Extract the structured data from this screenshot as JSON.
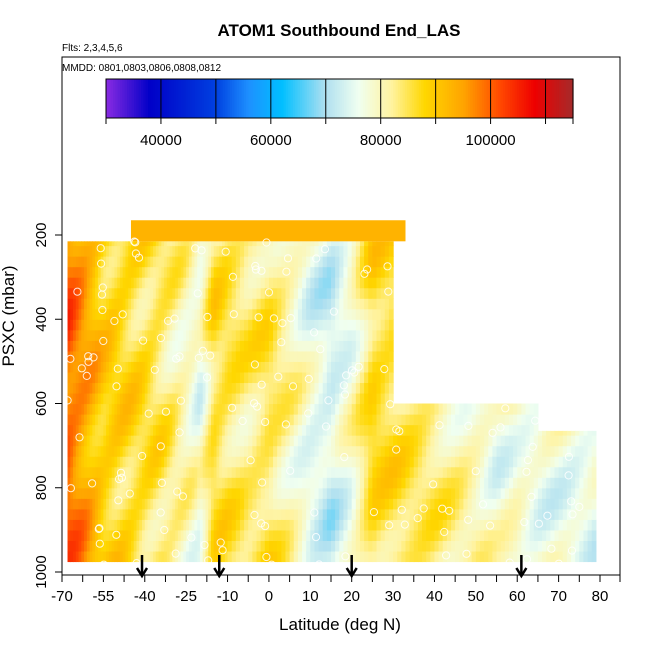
{
  "chart_data": {
    "type": "heatmap",
    "title": "ATOM1 Southbound End_LAS",
    "flights_label": "Flts: 2,3,4,5,6",
    "dates_label": "MMDD: 0801,0803,0806,0808,0812",
    "xlabel": "Latitude (deg N)",
    "ylabel": "PSXC (mbar)",
    "x_ticks": [
      "-70",
      "-55",
      "-40",
      "-25",
      "-10",
      "0",
      "10",
      "20",
      "30",
      "40",
      "50",
      "60",
      "70",
      "80"
    ],
    "y_ticks": [
      "200",
      "400",
      "600",
      "800",
      "1000"
    ],
    "y_range": [
      1000,
      0
    ],
    "y_reversed": true,
    "colorbar": {
      "min": 30000,
      "max": 115000,
      "tick_values": [
        40000,
        60000,
        80000,
        100000
      ],
      "tick_labels": [
        "40000",
        "60000",
        "80000",
        "100000"
      ],
      "boundaries": [
        30000,
        40000,
        50000,
        60000,
        70000,
        80000,
        90000,
        100000,
        110000,
        115000
      ],
      "colors": [
        {
          "value": 30000,
          "color": "#8a2be2"
        },
        {
          "value": 38000,
          "color": "#0000c8"
        },
        {
          "value": 50000,
          "color": "#0040e0"
        },
        {
          "value": 56000,
          "color": "#1e90ff"
        },
        {
          "value": 62000,
          "color": "#00bfff"
        },
        {
          "value": 70000,
          "color": "#b0e0f0"
        },
        {
          "value": 76000,
          "color": "#f0fff0"
        },
        {
          "value": 82000,
          "color": "#fff3a0"
        },
        {
          "value": 88000,
          "color": "#ffd700"
        },
        {
          "value": 95000,
          "color": "#ffa500"
        },
        {
          "value": 102000,
          "color": "#ff4500"
        },
        {
          "value": 108000,
          "color": "#ee0000"
        },
        {
          "value": 115000,
          "color": "#a52a2a"
        }
      ]
    },
    "latitude_profile": [
      {
        "lat": -68,
        "value": 100000
      },
      {
        "lat": -62,
        "value": 95000
      },
      {
        "lat": -55,
        "value": 89000
      },
      {
        "lat": -45,
        "value": 87000
      },
      {
        "lat": -35,
        "value": 85000
      },
      {
        "lat": -25,
        "value": 80000
      },
      {
        "lat": -20,
        "value": 77000
      },
      {
        "lat": -15,
        "value": 86000
      },
      {
        "lat": -10,
        "value": 85000
      },
      {
        "lat": -5,
        "value": 83000
      },
      {
        "lat": 0,
        "value": 85000
      },
      {
        "lat": 5,
        "value": 81000
      },
      {
        "lat": 10,
        "value": 76000
      },
      {
        "lat": 15,
        "value": 73000
      },
      {
        "lat": 20,
        "value": 78000
      },
      {
        "lat": 25,
        "value": 87000
      },
      {
        "lat": 30,
        "value": 86000
      },
      {
        "lat": 35,
        "value": 84000
      },
      {
        "lat": 40,
        "value": 83000
      },
      {
        "lat": 50,
        "value": 80000
      },
      {
        "lat": 55,
        "value": 77000
      },
      {
        "lat": 60,
        "value": 79000
      },
      {
        "lat": 65,
        "value": 77000
      },
      {
        "lat": 70,
        "value": 77000
      },
      {
        "lat": 79,
        "value": 76000
      }
    ],
    "top_band": {
      "lat_range": [
        -45,
        33
      ],
      "pressure_range": [
        165,
        215
      ],
      "value": 93000
    },
    "surface_markers_lat": [
      -41,
      -13,
      20,
      61
    ],
    "legend": "colorbar-top"
  }
}
